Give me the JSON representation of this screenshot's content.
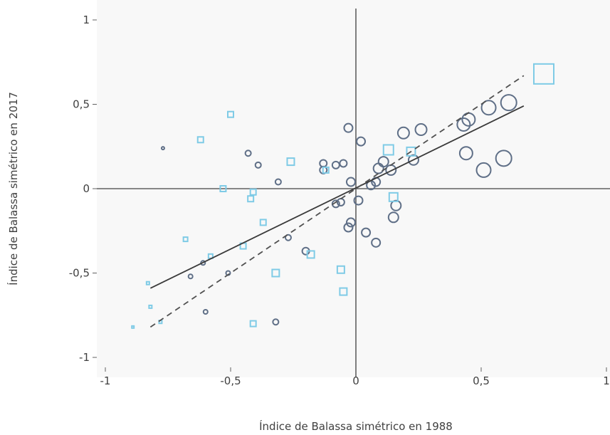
{
  "chart_data": {
    "type": "scatter",
    "xlabel": "Índice de Balassa simétrico en 1988",
    "ylabel": "Índice de Balassa simétrico en 2017",
    "xlim": [
      -1,
      1
    ],
    "ylim": [
      -1,
      1
    ],
    "xticks": [
      {
        "v": -1,
        "label": "-1"
      },
      {
        "v": -0.5,
        "label": "-0,5"
      },
      {
        "v": 0,
        "label": "0"
      },
      {
        "v": 0.5,
        "label": "0,5"
      },
      {
        "v": 1,
        "label": "1"
      }
    ],
    "yticks": [
      {
        "v": -1,
        "label": "-1"
      },
      {
        "v": -0.5,
        "label": "-0,5"
      },
      {
        "v": 0,
        "label": "0"
      },
      {
        "v": 0.5,
        "label": "0,5"
      },
      {
        "v": 1,
        "label": "1"
      }
    ],
    "grid": false,
    "background": "#f8f8f8",
    "colors": {
      "circle": "#5f6f87",
      "square": "#7fcbe6",
      "solid_line": "#3a3a3a",
      "dashed_line": "#505050",
      "axis": "#606060"
    },
    "series": [
      {
        "marker": "circle",
        "points": [
          {
            "x": -0.77,
            "y": 0.24,
            "s": 2
          },
          {
            "x": -0.43,
            "y": 0.21,
            "s": 4
          },
          {
            "x": -0.39,
            "y": 0.14,
            "s": 4
          },
          {
            "x": -0.31,
            "y": 0.04,
            "s": 4
          },
          {
            "x": -0.13,
            "y": 0.15,
            "s": 5
          },
          {
            "x": -0.13,
            "y": 0.11,
            "s": 5
          },
          {
            "x": -0.08,
            "y": 0.14,
            "s": 5
          },
          {
            "x": -0.05,
            "y": 0.15,
            "s": 5
          },
          {
            "x": -0.03,
            "y": 0.36,
            "s": 6
          },
          {
            "x": 0.02,
            "y": 0.28,
            "s": 6
          },
          {
            "x": -0.02,
            "y": 0.04,
            "s": 6
          },
          {
            "x": -0.08,
            "y": -0.09,
            "s": 5
          },
          {
            "x": -0.06,
            "y": -0.08,
            "s": 5
          },
          {
            "x": 0.01,
            "y": -0.07,
            "s": 6
          },
          {
            "x": -0.03,
            "y": -0.23,
            "s": 6
          },
          {
            "x": -0.02,
            "y": -0.2,
            "s": 6
          },
          {
            "x": 0.04,
            "y": -0.26,
            "s": 6
          },
          {
            "x": 0.08,
            "y": -0.32,
            "s": 6
          },
          {
            "x": 0.06,
            "y": 0.02,
            "s": 6
          },
          {
            "x": 0.08,
            "y": 0.04,
            "s": 6
          },
          {
            "x": 0.09,
            "y": 0.12,
            "s": 7
          },
          {
            "x": 0.11,
            "y": 0.16,
            "s": 7
          },
          {
            "x": 0.14,
            "y": 0.11,
            "s": 7
          },
          {
            "x": 0.16,
            "y": -0.1,
            "s": 7
          },
          {
            "x": 0.15,
            "y": -0.17,
            "s": 7
          },
          {
            "x": 0.19,
            "y": 0.33,
            "s": 8
          },
          {
            "x": 0.23,
            "y": 0.17,
            "s": 7
          },
          {
            "x": 0.26,
            "y": 0.35,
            "s": 8
          },
          {
            "x": 0.43,
            "y": 0.38,
            "s": 9
          },
          {
            "x": 0.45,
            "y": 0.41,
            "s": 9
          },
          {
            "x": 0.44,
            "y": 0.21,
            "s": 9
          },
          {
            "x": 0.53,
            "y": 0.48,
            "s": 10
          },
          {
            "x": 0.61,
            "y": 0.51,
            "s": 11
          },
          {
            "x": 0.51,
            "y": 0.11,
            "s": 10
          },
          {
            "x": 0.59,
            "y": 0.18,
            "s": 11
          },
          {
            "x": -0.2,
            "y": -0.37,
            "s": 5
          },
          {
            "x": -0.27,
            "y": -0.29,
            "s": 4
          },
          {
            "x": -0.51,
            "y": -0.5,
            "s": 3
          },
          {
            "x": -0.61,
            "y": -0.44,
            "s": 3
          },
          {
            "x": -0.66,
            "y": -0.52,
            "s": 3
          },
          {
            "x": -0.6,
            "y": -0.73,
            "s": 3
          },
          {
            "x": -0.32,
            "y": -0.79,
            "s": 4
          }
        ]
      },
      {
        "marker": "square",
        "points": [
          {
            "x": 0.75,
            "y": 0.68,
            "s": 14
          },
          {
            "x": 0.13,
            "y": 0.23,
            "s": 7
          },
          {
            "x": 0.22,
            "y": 0.22,
            "s": 6
          },
          {
            "x": 0.15,
            "y": -0.05,
            "s": 6
          },
          {
            "x": -0.62,
            "y": 0.29,
            "s": 4
          },
          {
            "x": -0.5,
            "y": 0.44,
            "s": 4
          },
          {
            "x": -0.26,
            "y": 0.16,
            "s": 5
          },
          {
            "x": -0.12,
            "y": 0.11,
            "s": 4
          },
          {
            "x": -0.53,
            "y": 0.0,
            "s": 4
          },
          {
            "x": -0.41,
            "y": -0.02,
            "s": 4
          },
          {
            "x": -0.42,
            "y": -0.06,
            "s": 4
          },
          {
            "x": -0.37,
            "y": -0.2,
            "s": 4
          },
          {
            "x": -0.45,
            "y": -0.34,
            "s": 4
          },
          {
            "x": -0.18,
            "y": -0.39,
            "s": 5
          },
          {
            "x": -0.32,
            "y": -0.5,
            "s": 5
          },
          {
            "x": -0.06,
            "y": -0.48,
            "s": 5
          },
          {
            "x": -0.05,
            "y": -0.61,
            "s": 5
          },
          {
            "x": -0.41,
            "y": -0.8,
            "s": 4
          },
          {
            "x": -0.68,
            "y": -0.3,
            "s": 3
          },
          {
            "x": -0.58,
            "y": -0.4,
            "s": 3
          },
          {
            "x": -0.83,
            "y": -0.56,
            "s": 2
          },
          {
            "x": -0.82,
            "y": -0.7,
            "s": 2
          },
          {
            "x": -0.78,
            "y": -0.79,
            "s": 2
          },
          {
            "x": -0.89,
            "y": -0.82,
            "s": 1.5
          }
        ]
      }
    ],
    "trend_lines": [
      {
        "style": "solid",
        "x": [
          -0.82,
          0.67
        ],
        "y": [
          -0.59,
          0.49
        ]
      },
      {
        "style": "dashed",
        "x": [
          -0.82,
          0.67
        ],
        "y": [
          -0.82,
          0.67
        ]
      }
    ]
  }
}
